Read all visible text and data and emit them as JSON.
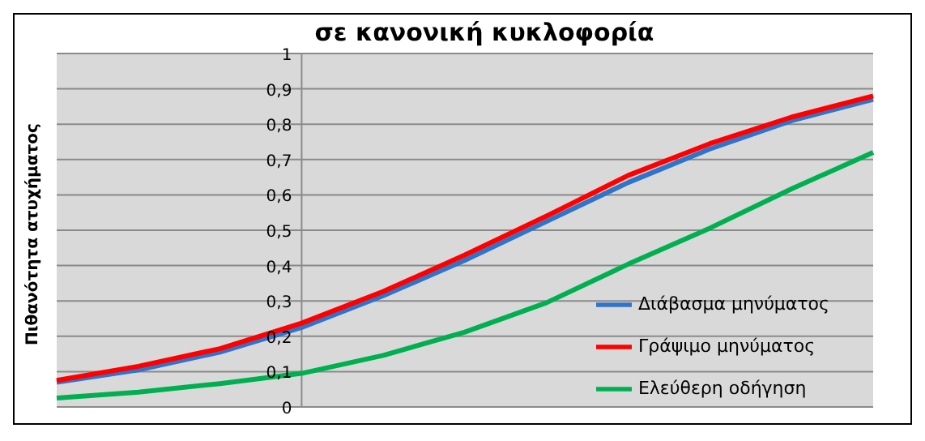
{
  "chart_data": {
    "type": "line",
    "title": "σε κανονική κυκλοφορία",
    "ylabel": "Πιθανότητα ατυχήματος",
    "categories": [
      null,
      null,
      null,
      null,
      null,
      null,
      null,
      null,
      null,
      null,
      null
    ],
    "series": [
      {
        "name": "Διάβασμα μηνύματος",
        "color": "#2f74c8",
        "values": [
          0.07,
          0.105,
          0.155,
          0.225,
          0.315,
          0.415,
          0.525,
          0.635,
          0.73,
          0.81,
          0.87
        ]
      },
      {
        "name": "Γράψιμο μηνύματος",
        "color": "#ff0000",
        "values": [
          0.075,
          0.115,
          0.165,
          0.237,
          0.327,
          0.43,
          0.54,
          0.655,
          0.745,
          0.82,
          0.88
        ]
      },
      {
        "name": "Ελεύθερη οδήγηση",
        "color": "#00b050",
        "values": [
          0.025,
          0.042,
          0.066,
          0.095,
          0.146,
          0.212,
          0.295,
          0.404,
          0.506,
          0.617,
          0.72
        ]
      }
    ],
    "ylim": [
      0,
      1
    ],
    "yticks": [
      0,
      {
        "value": 0.1,
        "label": "0,1"
      },
      {
        "value": 0.2,
        "label": "0,2"
      },
      {
        "value": 0.3,
        "label": "0,3"
      },
      {
        "value": 0.4,
        "label": "0,4"
      },
      {
        "value": 0.5,
        "label": "0,5"
      },
      {
        "value": 0.6,
        "label": "0,6"
      },
      {
        "value": 0.7,
        "label": "0,7"
      },
      {
        "value": 0.8,
        "label": "0,8"
      },
      {
        "value": 0.9,
        "label": "0,9"
      },
      1
    ],
    "grid": "y",
    "legend": "bottom right",
    "marker": "none",
    "line_style": "solid"
  }
}
